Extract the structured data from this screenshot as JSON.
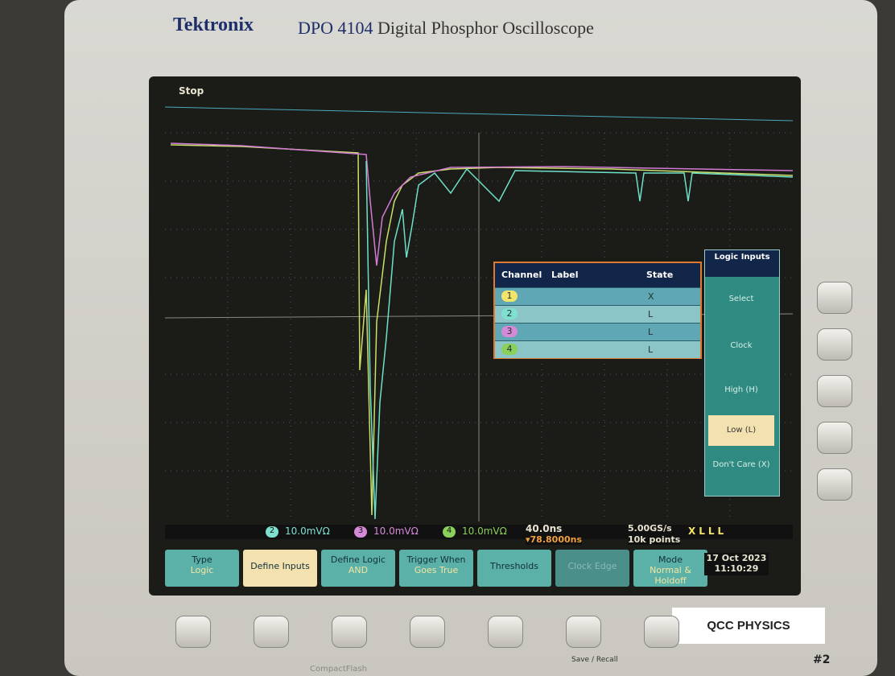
{
  "header": {
    "brand": "Tektronix",
    "model": "DPO 4104",
    "description": "Digital Phosphor Oscilloscope"
  },
  "status": "Stop",
  "logic_table": {
    "columns": [
      "Channel",
      "Label",
      "State"
    ],
    "rows": [
      {
        "channel": "1",
        "state": "X"
      },
      {
        "channel": "2",
        "state": "L"
      },
      {
        "channel": "3",
        "state": "L"
      },
      {
        "channel": "4",
        "state": "L"
      }
    ]
  },
  "side_menu": {
    "title": "Logic Inputs",
    "items": [
      "Select",
      "Clock",
      "High (H)",
      "Low (L)",
      "Don't Care (X)"
    ]
  },
  "channel_readouts": [
    {
      "channel": "2",
      "scale": "10.0mVΩ"
    },
    {
      "channel": "3",
      "scale": "10.0mVΩ"
    },
    {
      "channel": "4",
      "scale": "10.0mVΩ"
    }
  ],
  "timebase": {
    "scale": "40.0ns",
    "trigger_position": "▾78.8000ns"
  },
  "acquisition": {
    "sample_rate": "5.00GS/s",
    "record_length": "10k points"
  },
  "logic_pattern": "XLLL",
  "bottom_menu": [
    {
      "label": "Type",
      "value": "Logic"
    },
    {
      "label": "Define Inputs"
    },
    {
      "label": "Define Logic",
      "value": "AND"
    },
    {
      "label": "Trigger When",
      "value": "Goes True"
    },
    {
      "label": "Thresholds"
    },
    {
      "label": "Clock Edge"
    },
    {
      "label": "Mode",
      "value": "Normal & Holdoff"
    }
  ],
  "datetime": {
    "date": "17 Oct 2023",
    "time": "11:10:29"
  },
  "bezel": {
    "label": "QCC PHYSICS",
    "unit_number": "#2",
    "save_recall": "Save / Recall",
    "card_slot": "CompactFlash"
  }
}
